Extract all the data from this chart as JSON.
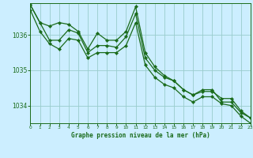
{
  "background_color": "#cceeff",
  "grid_color": "#99cccc",
  "line_color": "#1a6b1a",
  "xlabel": "Graphe pression niveau de la mer (hPa)",
  "xlim": [
    0,
    23
  ],
  "ylim": [
    1033.5,
    1036.9
  ],
  "yticks": [
    1034,
    1035,
    1036
  ],
  "xticks": [
    0,
    1,
    2,
    3,
    4,
    5,
    6,
    7,
    8,
    9,
    10,
    11,
    12,
    13,
    14,
    15,
    16,
    17,
    18,
    19,
    20,
    21,
    22,
    23
  ],
  "series1_x": [
    0,
    1,
    2,
    3,
    4,
    5,
    6,
    7,
    8,
    9,
    10,
    11,
    12,
    13,
    14,
    15,
    16,
    17,
    18,
    19,
    20,
    21,
    22,
    23
  ],
  "series1_y": [
    1036.85,
    1036.35,
    1036.25,
    1036.35,
    1036.3,
    1036.1,
    1035.6,
    1036.05,
    1035.85,
    1035.85,
    1036.1,
    1036.8,
    1035.5,
    1035.1,
    1034.85,
    1034.7,
    1034.45,
    1034.3,
    1034.45,
    1034.45,
    1034.1,
    1034.1,
    1033.8,
    1033.65
  ],
  "series2_x": [
    0,
    1,
    2,
    3,
    4,
    5,
    6,
    7,
    8,
    9,
    10,
    11,
    12,
    13,
    14,
    15,
    16,
    17,
    18,
    19,
    20,
    21,
    22,
    23
  ],
  "series2_y": [
    1036.85,
    1036.35,
    1035.85,
    1035.85,
    1036.15,
    1036.05,
    1035.5,
    1035.7,
    1035.7,
    1035.65,
    1035.95,
    1036.6,
    1035.35,
    1035.0,
    1034.8,
    1034.7,
    1034.45,
    1034.3,
    1034.4,
    1034.4,
    1034.2,
    1034.2,
    1033.85,
    1033.65
  ],
  "series3_x": [
    0,
    1,
    2,
    3,
    4,
    5,
    6,
    7,
    8,
    9,
    10,
    11,
    12,
    13,
    14,
    15,
    16,
    17,
    18,
    19,
    20,
    21,
    22,
    23
  ],
  "series3_y": [
    1036.7,
    1036.1,
    1035.75,
    1035.6,
    1035.9,
    1035.85,
    1035.35,
    1035.5,
    1035.5,
    1035.5,
    1035.7,
    1036.35,
    1035.15,
    1034.8,
    1034.6,
    1034.5,
    1034.25,
    1034.1,
    1034.25,
    1034.25,
    1034.05,
    1034.0,
    1033.7,
    1033.5
  ]
}
